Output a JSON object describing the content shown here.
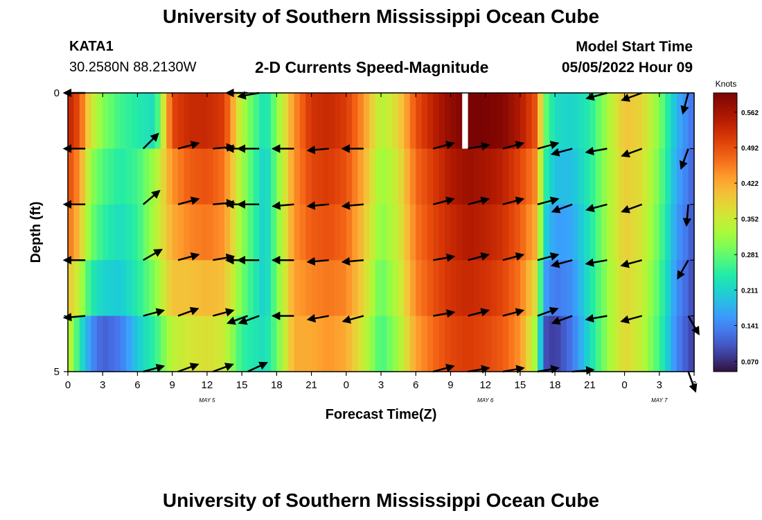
{
  "header": {
    "title": "University of Southern Mississippi Ocean Cube",
    "station": "KATA1",
    "coordinates": "30.2580N  88.2130W",
    "product": "2-D Currents Speed-Magnitude",
    "model_start_label": "Model Start Time",
    "model_start_value": "05/05/2022 Hour 09"
  },
  "footer": {
    "title": "University of Southern Mississippi Ocean Cube"
  },
  "chart_data": {
    "type": "heatmap",
    "title": "2-D Currents Speed-Magnitude",
    "xlabel": "Forecast Time(Z)",
    "ylabel": "Depth (ft)",
    "x_range_hours": [
      0,
      54
    ],
    "ylim": [
      0,
      5
    ],
    "x_ticks": [
      "0",
      "3",
      "6",
      "9",
      "12",
      "15",
      "18",
      "21",
      "0",
      "3",
      "6",
      "9",
      "12",
      "15",
      "18",
      "21",
      "0",
      "3",
      "6"
    ],
    "y_ticks": [
      "0",
      "5"
    ],
    "date_labels": [
      {
        "label": "MAY 5",
        "hour": 12
      },
      {
        "label": "MAY 6",
        "hour": 36
      },
      {
        "label": "MAY 7",
        "hour": 51
      }
    ],
    "colorbar": {
      "label": "Knots",
      "ticks": [
        "0.070",
        "0.141",
        "0.211",
        "0.281",
        "0.352",
        "0.422",
        "0.492",
        "0.562"
      ],
      "vmin": 0.05,
      "vmax": 0.6
    },
    "depth_rows": 5,
    "speed_keyframes": [
      {
        "h": 0,
        "v": [
          0.54,
          0.5,
          0.47,
          0.4,
          0.36
        ]
      },
      {
        "h": 1,
        "v": [
          0.49,
          0.44,
          0.4,
          0.34,
          0.24
        ]
      },
      {
        "h": 2,
        "v": [
          0.36,
          0.31,
          0.29,
          0.24,
          0.15
        ]
      },
      {
        "h": 3,
        "v": [
          0.3,
          0.27,
          0.25,
          0.21,
          0.11
        ]
      },
      {
        "h": 4.5,
        "v": [
          0.26,
          0.24,
          0.22,
          0.2,
          0.13
        ]
      },
      {
        "h": 6,
        "v": [
          0.24,
          0.26,
          0.25,
          0.24,
          0.2
        ]
      },
      {
        "h": 7.5,
        "v": [
          0.22,
          0.32,
          0.33,
          0.3,
          0.25
        ]
      },
      {
        "h": 9,
        "v": [
          0.5,
          0.44,
          0.42,
          0.4,
          0.34
        ]
      },
      {
        "h": 10.5,
        "v": [
          0.53,
          0.48,
          0.45,
          0.4,
          0.36
        ]
      },
      {
        "h": 12,
        "v": [
          0.53,
          0.49,
          0.46,
          0.41,
          0.37
        ]
      },
      {
        "h": 13.5,
        "v": [
          0.51,
          0.46,
          0.44,
          0.4,
          0.35
        ]
      },
      {
        "h": 15,
        "v": [
          0.33,
          0.32,
          0.31,
          0.29,
          0.25
        ]
      },
      {
        "h": 17,
        "v": [
          0.22,
          0.2,
          0.2,
          0.2,
          0.22
        ]
      },
      {
        "h": 18,
        "v": [
          0.3,
          0.29,
          0.29,
          0.29,
          0.28
        ]
      },
      {
        "h": 19.5,
        "v": [
          0.44,
          0.44,
          0.44,
          0.43,
          0.42
        ]
      },
      {
        "h": 21,
        "v": [
          0.52,
          0.5,
          0.48,
          0.45,
          0.42
        ]
      },
      {
        "h": 22.5,
        "v": [
          0.53,
          0.51,
          0.49,
          0.46,
          0.44
        ]
      },
      {
        "h": 24,
        "v": [
          0.51,
          0.49,
          0.47,
          0.45,
          0.42
        ]
      },
      {
        "h": 25.5,
        "v": [
          0.44,
          0.42,
          0.4,
          0.38,
          0.35
        ]
      },
      {
        "h": 27,
        "v": [
          0.33,
          0.31,
          0.3,
          0.28,
          0.26
        ]
      },
      {
        "h": 28.5,
        "v": [
          0.38,
          0.36,
          0.35,
          0.34,
          0.32
        ]
      },
      {
        "h": 30,
        "v": [
          0.49,
          0.47,
          0.46,
          0.45,
          0.43
        ]
      },
      {
        "h": 31.5,
        "v": [
          0.54,
          0.51,
          0.5,
          0.49,
          0.47
        ]
      },
      {
        "h": 33,
        "v": [
          0.58,
          0.55,
          0.53,
          0.52,
          0.5
        ]
      },
      {
        "h": 34.5,
        "v": [
          0.6,
          0.57,
          0.55,
          0.53,
          0.51
        ]
      },
      {
        "h": 36,
        "v": [
          0.6,
          0.56,
          0.54,
          0.52,
          0.5
        ]
      },
      {
        "h": 37.5,
        "v": [
          0.59,
          0.54,
          0.52,
          0.5,
          0.48
        ]
      },
      {
        "h": 39,
        "v": [
          0.55,
          0.5,
          0.48,
          0.46,
          0.44
        ]
      },
      {
        "h": 40.5,
        "v": [
          0.48,
          0.44,
          0.41,
          0.36,
          0.3
        ]
      },
      {
        "h": 41,
        "v": [
          0.3,
          0.26,
          0.22,
          0.17,
          0.1
        ]
      },
      {
        "h": 42,
        "v": [
          0.22,
          0.19,
          0.16,
          0.13,
          0.08
        ]
      },
      {
        "h": 43.5,
        "v": [
          0.21,
          0.19,
          0.17,
          0.15,
          0.13
        ]
      },
      {
        "h": 45,
        "v": [
          0.24,
          0.24,
          0.23,
          0.23,
          0.22
        ]
      },
      {
        "h": 46.5,
        "v": [
          0.32,
          0.32,
          0.32,
          0.31,
          0.31
        ]
      },
      {
        "h": 48,
        "v": [
          0.4,
          0.39,
          0.39,
          0.38,
          0.38
        ]
      },
      {
        "h": 49.5,
        "v": [
          0.38,
          0.37,
          0.36,
          0.35,
          0.34
        ]
      },
      {
        "h": 51,
        "v": [
          0.3,
          0.29,
          0.28,
          0.27,
          0.26
        ]
      },
      {
        "h": 52.5,
        "v": [
          0.18,
          0.17,
          0.16,
          0.15,
          0.14
        ]
      },
      {
        "h": 54,
        "v": [
          0.12,
          0.11,
          0.1,
          0.09,
          0.08
        ]
      }
    ],
    "missing_cells": [
      {
        "hour": 34,
        "depth": 0
      }
    ],
    "arrow_hours": [
      1.5,
      6.5,
      9.5,
      12.5,
      15.5,
      16.5,
      19.5,
      22.5,
      25.5,
      31.5,
      34.5,
      37.5,
      40.5,
      43.5,
      46.5,
      49.5,
      53.5
    ],
    "vectors": [
      {
        "hour": 1.5,
        "depth": 0,
        "dir": 180
      },
      {
        "hour": 15.5,
        "depth": 0,
        "dir": 180
      },
      {
        "hour": 16.5,
        "depth": 0,
        "dir": 190
      },
      {
        "hour": 46.5,
        "depth": 0,
        "dir": 195
      },
      {
        "hour": 49.5,
        "depth": 0,
        "dir": 200
      },
      {
        "hour": 53.5,
        "depth": 0,
        "dir": 255
      },
      {
        "hour": 1.5,
        "depth": 1,
        "dir": 180
      },
      {
        "hour": 6.5,
        "depth": 1,
        "dir": 45
      },
      {
        "hour": 9.5,
        "depth": 1,
        "dir": 15
      },
      {
        "hour": 12.5,
        "depth": 1,
        "dir": 5
      },
      {
        "hour": 15.5,
        "depth": 1,
        "dir": 180
      },
      {
        "hour": 16.5,
        "depth": 1,
        "dir": 180
      },
      {
        "hour": 19.5,
        "depth": 1,
        "dir": 180
      },
      {
        "hour": 22.5,
        "depth": 1,
        "dir": 185
      },
      {
        "hour": 25.5,
        "depth": 1,
        "dir": 180
      },
      {
        "hour": 31.5,
        "depth": 1,
        "dir": 15
      },
      {
        "hour": 34.5,
        "depth": 1,
        "dir": 10
      },
      {
        "hour": 37.5,
        "depth": 1,
        "dir": 15
      },
      {
        "hour": 40.5,
        "depth": 1,
        "dir": 15
      },
      {
        "hour": 43.5,
        "depth": 1,
        "dir": 195
      },
      {
        "hour": 46.5,
        "depth": 1,
        "dir": 190
      },
      {
        "hour": 49.5,
        "depth": 1,
        "dir": 200
      },
      {
        "hour": 53.5,
        "depth": 1,
        "dir": 250
      },
      {
        "hour": 1.5,
        "depth": 2,
        "dir": 180
      },
      {
        "hour": 6.5,
        "depth": 2,
        "dir": 40
      },
      {
        "hour": 9.5,
        "depth": 2,
        "dir": 15
      },
      {
        "hour": 12.5,
        "depth": 2,
        "dir": 5
      },
      {
        "hour": 15.5,
        "depth": 2,
        "dir": 180
      },
      {
        "hour": 16.5,
        "depth": 2,
        "dir": 180
      },
      {
        "hour": 19.5,
        "depth": 2,
        "dir": 185
      },
      {
        "hour": 22.5,
        "depth": 2,
        "dir": 185
      },
      {
        "hour": 25.5,
        "depth": 2,
        "dir": 185
      },
      {
        "hour": 31.5,
        "depth": 2,
        "dir": 15
      },
      {
        "hour": 34.5,
        "depth": 2,
        "dir": 15
      },
      {
        "hour": 37.5,
        "depth": 2,
        "dir": 15
      },
      {
        "hour": 40.5,
        "depth": 2,
        "dir": 15
      },
      {
        "hour": 43.5,
        "depth": 2,
        "dir": 200
      },
      {
        "hour": 46.5,
        "depth": 2,
        "dir": 195
      },
      {
        "hour": 49.5,
        "depth": 2,
        "dir": 200
      },
      {
        "hour": 53.5,
        "depth": 2,
        "dir": 265
      },
      {
        "hour": 1.5,
        "depth": 3,
        "dir": 180
      },
      {
        "hour": 6.5,
        "depth": 3,
        "dir": 30
      },
      {
        "hour": 9.5,
        "depth": 3,
        "dir": 15
      },
      {
        "hour": 12.5,
        "depth": 3,
        "dir": 10
      },
      {
        "hour": 15.5,
        "depth": 3,
        "dir": 180
      },
      {
        "hour": 16.5,
        "depth": 3,
        "dir": 180
      },
      {
        "hour": 19.5,
        "depth": 3,
        "dir": 180
      },
      {
        "hour": 22.5,
        "depth": 3,
        "dir": 185
      },
      {
        "hour": 25.5,
        "depth": 3,
        "dir": 185
      },
      {
        "hour": 31.5,
        "depth": 3,
        "dir": 10
      },
      {
        "hour": 34.5,
        "depth": 3,
        "dir": 15
      },
      {
        "hour": 37.5,
        "depth": 3,
        "dir": 15
      },
      {
        "hour": 40.5,
        "depth": 3,
        "dir": 15
      },
      {
        "hour": 43.5,
        "depth": 3,
        "dir": 195
      },
      {
        "hour": 46.5,
        "depth": 3,
        "dir": 190
      },
      {
        "hour": 49.5,
        "depth": 3,
        "dir": 195
      },
      {
        "hour": 53.5,
        "depth": 3,
        "dir": 240
      },
      {
        "hour": 1.5,
        "depth": 4,
        "dir": 185
      },
      {
        "hour": 6.5,
        "depth": 4,
        "dir": 15
      },
      {
        "hour": 9.5,
        "depth": 4,
        "dir": 20
      },
      {
        "hour": 12.5,
        "depth": 4,
        "dir": 15
      },
      {
        "hour": 15.5,
        "depth": 4,
        "dir": 200
      },
      {
        "hour": 16.5,
        "depth": 4,
        "dir": 200
      },
      {
        "hour": 19.5,
        "depth": 4,
        "dir": 180
      },
      {
        "hour": 22.5,
        "depth": 4,
        "dir": 190
      },
      {
        "hour": 25.5,
        "depth": 4,
        "dir": 195
      },
      {
        "hour": 31.5,
        "depth": 4,
        "dir": 10
      },
      {
        "hour": 34.5,
        "depth": 4,
        "dir": 15
      },
      {
        "hour": 37.5,
        "depth": 4,
        "dir": 15
      },
      {
        "hour": 40.5,
        "depth": 4,
        "dir": 20
      },
      {
        "hour": 43.5,
        "depth": 4,
        "dir": 200
      },
      {
        "hour": 46.5,
        "depth": 4,
        "dir": 190
      },
      {
        "hour": 49.5,
        "depth": 4,
        "dir": 195
      },
      {
        "hour": 53.5,
        "depth": 4,
        "dir": 300
      },
      {
        "hour": 6.5,
        "depth": 5,
        "dir": 15
      },
      {
        "hour": 9.5,
        "depth": 5,
        "dir": 20
      },
      {
        "hour": 12.5,
        "depth": 5,
        "dir": 20
      },
      {
        "hour": 15.5,
        "depth": 5,
        "dir": 25
      },
      {
        "hour": 31.5,
        "depth": 5,
        "dir": 15
      },
      {
        "hour": 34.5,
        "depth": 5,
        "dir": 10
      },
      {
        "hour": 37.5,
        "depth": 5,
        "dir": 10
      },
      {
        "hour": 40.5,
        "depth": 5,
        "dir": 10
      },
      {
        "hour": 43.5,
        "depth": 5,
        "dir": 5
      },
      {
        "hour": 53.5,
        "depth": 5,
        "dir": 290
      }
    ]
  }
}
